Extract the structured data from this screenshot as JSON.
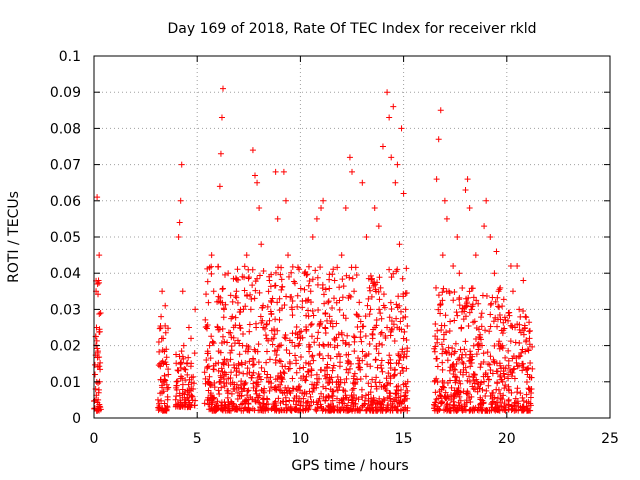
{
  "chart_data": {
    "type": "scatter",
    "title": "Day 169 of 2018, Rate Of TEC Index for receiver rkld",
    "xlabel": "GPS time / hours",
    "ylabel": "ROTI / TECUs",
    "xlim": [
      0,
      25
    ],
    "ylim": [
      0,
      0.1
    ],
    "x_ticks": [
      "0",
      "5",
      "10",
      "15",
      "20",
      "25"
    ],
    "y_ticks": [
      "0",
      "0.01",
      "0.02",
      "0.03",
      "0.04",
      "0.05",
      "0.06",
      "0.07",
      "0.08",
      "0.09",
      "0.1"
    ],
    "grid": true,
    "legend": "none",
    "marker": "+",
    "color": "#ff0000",
    "series": [
      {
        "points": [
          [
            0.05,
            0.012
          ],
          [
            0.08,
            0.008
          ],
          [
            0.1,
            0.035
          ],
          [
            0.12,
            0.025
          ],
          [
            0.15,
            0.061
          ],
          [
            0.18,
            0.018
          ],
          [
            0.2,
            0.005
          ],
          [
            0.22,
            0.038
          ],
          [
            0.25,
            0.045
          ],
          [
            0.27,
            0.01
          ],
          [
            0.3,
            0.003
          ],
          [
            0.32,
            0.029
          ],
          [
            3.1,
            0.005
          ],
          [
            3.2,
            0.015
          ],
          [
            3.25,
            0.028
          ],
          [
            3.3,
            0.035
          ],
          [
            3.35,
            0.022
          ],
          [
            3.4,
            0.01
          ],
          [
            3.45,
            0.031
          ],
          [
            3.5,
            0.019
          ],
          [
            3.55,
            0.008
          ],
          [
            3.6,
            0.012
          ],
          [
            4.0,
            0.01
          ],
          [
            4.1,
            0.05
          ],
          [
            4.15,
            0.054
          ],
          [
            4.2,
            0.06
          ],
          [
            4.25,
            0.07
          ],
          [
            4.3,
            0.035
          ],
          [
            4.35,
            0.02
          ],
          [
            4.4,
            0.005
          ],
          [
            4.5,
            0.015
          ],
          [
            4.6,
            0.025
          ],
          [
            4.7,
            0.022
          ],
          [
            4.8,
            0.008
          ],
          [
            4.9,
            0.03
          ],
          [
            5.5,
            0.005
          ],
          [
            5.6,
            0.02
          ],
          [
            5.7,
            0.045
          ],
          [
            5.8,
            0.035
          ],
          [
            5.9,
            0.015
          ],
          [
            6.0,
            0.025
          ],
          [
            6.1,
            0.064
          ],
          [
            6.15,
            0.073
          ],
          [
            6.2,
            0.083
          ],
          [
            6.25,
            0.091
          ],
          [
            6.3,
            0.03
          ],
          [
            6.4,
            0.012
          ],
          [
            6.5,
            0.04
          ],
          [
            6.6,
            0.018
          ],
          [
            6.7,
            0.028
          ],
          [
            6.8,
            0.008
          ],
          [
            6.9,
            0.035
          ],
          [
            7.0,
            0.015
          ],
          [
            7.2,
            0.02
          ],
          [
            7.4,
            0.045
          ],
          [
            7.6,
            0.03
          ],
          [
            7.7,
            0.074
          ],
          [
            7.8,
            0.067
          ],
          [
            7.9,
            0.065
          ],
          [
            8.0,
            0.058
          ],
          [
            8.1,
            0.048
          ],
          [
            8.2,
            0.025
          ],
          [
            8.4,
            0.012
          ],
          [
            8.5,
            0.038
          ],
          [
            8.6,
            0.032
          ],
          [
            8.8,
            0.068
          ],
          [
            8.9,
            0.055
          ],
          [
            9.0,
            0.02
          ],
          [
            9.2,
            0.068
          ],
          [
            9.3,
            0.06
          ],
          [
            9.4,
            0.045
          ],
          [
            9.5,
            0.015
          ],
          [
            9.6,
            0.03
          ],
          [
            9.8,
            0.008
          ],
          [
            10.0,
            0.022
          ],
          [
            10.2,
            0.04
          ],
          [
            10.4,
            0.015
          ],
          [
            10.5,
            0.035
          ],
          [
            10.6,
            0.05
          ],
          [
            10.8,
            0.055
          ],
          [
            11.0,
            0.058
          ],
          [
            11.1,
            0.06
          ],
          [
            11.2,
            0.025
          ],
          [
            11.3,
            0.012
          ],
          [
            11.8,
            0.02
          ],
          [
            12.0,
            0.045
          ],
          [
            12.2,
            0.058
          ],
          [
            12.4,
            0.072
          ],
          [
            12.5,
            0.068
          ],
          [
            12.6,
            0.035
          ],
          [
            12.8,
            0.015
          ],
          [
            13.0,
            0.065
          ],
          [
            13.2,
            0.05
          ],
          [
            13.4,
            0.03
          ],
          [
            13.5,
            0.022
          ],
          [
            13.6,
            0.058
          ],
          [
            13.8,
            0.053
          ],
          [
            14.0,
            0.075
          ],
          [
            14.2,
            0.09
          ],
          [
            14.3,
            0.083
          ],
          [
            14.4,
            0.072
          ],
          [
            14.5,
            0.086
          ],
          [
            14.6,
            0.065
          ],
          [
            14.7,
            0.07
          ],
          [
            14.8,
            0.048
          ],
          [
            14.9,
            0.08
          ],
          [
            15.0,
            0.062
          ],
          [
            15.1,
            0.03
          ],
          [
            15.2,
            0.01
          ],
          [
            16.5,
            0.01
          ],
          [
            16.6,
            0.066
          ],
          [
            16.7,
            0.077
          ],
          [
            16.8,
            0.085
          ],
          [
            16.9,
            0.045
          ],
          [
            17.0,
            0.06
          ],
          [
            17.1,
            0.055
          ],
          [
            17.2,
            0.035
          ],
          [
            17.4,
            0.042
          ],
          [
            17.6,
            0.05
          ],
          [
            17.7,
            0.04
          ],
          [
            17.8,
            0.025
          ],
          [
            17.9,
            0.015
          ],
          [
            18.0,
            0.063
          ],
          [
            18.1,
            0.066
          ],
          [
            18.2,
            0.058
          ],
          [
            18.3,
            0.03
          ],
          [
            18.5,
            0.045
          ],
          [
            18.7,
            0.02
          ],
          [
            18.9,
            0.053
          ],
          [
            19.0,
            0.06
          ],
          [
            19.2,
            0.05
          ],
          [
            19.4,
            0.04
          ],
          [
            19.5,
            0.046
          ],
          [
            19.6,
            0.035
          ],
          [
            19.7,
            0.02
          ],
          [
            19.8,
            0.01
          ],
          [
            20.1,
            0.005
          ],
          [
            20.2,
            0.042
          ],
          [
            20.3,
            0.035
          ],
          [
            20.4,
            0.025
          ],
          [
            20.5,
            0.042
          ],
          [
            20.6,
            0.03
          ],
          [
            20.7,
            0.018
          ],
          [
            20.8,
            0.038
          ],
          [
            20.9,
            0.028
          ],
          [
            21.0,
            0.012
          ],
          [
            21.1,
            0.022
          ],
          [
            21.2,
            0.008
          ]
        ]
      }
    ],
    "dense_bands": [
      {
        "x": [
          0.0,
          0.35
        ],
        "y_floor": 0.002,
        "y_peak": 0.038,
        "density": 5
      },
      {
        "x": [
          3.1,
          3.6
        ],
        "y_floor": 0.002,
        "y_peak": 0.026,
        "density": 5
      },
      {
        "x": [
          3.95,
          4.9
        ],
        "y_floor": 0.003,
        "y_peak": 0.02,
        "density": 5
      },
      {
        "x": [
          5.35,
          15.2
        ],
        "y_floor": 0.002,
        "y_peak": 0.042,
        "density": 8
      },
      {
        "x": [
          16.45,
          19.95
        ],
        "y_floor": 0.002,
        "y_peak": 0.036,
        "density": 8
      },
      {
        "x": [
          20.05,
          21.25
        ],
        "y_floor": 0.002,
        "y_peak": 0.03,
        "density": 6
      }
    ]
  }
}
